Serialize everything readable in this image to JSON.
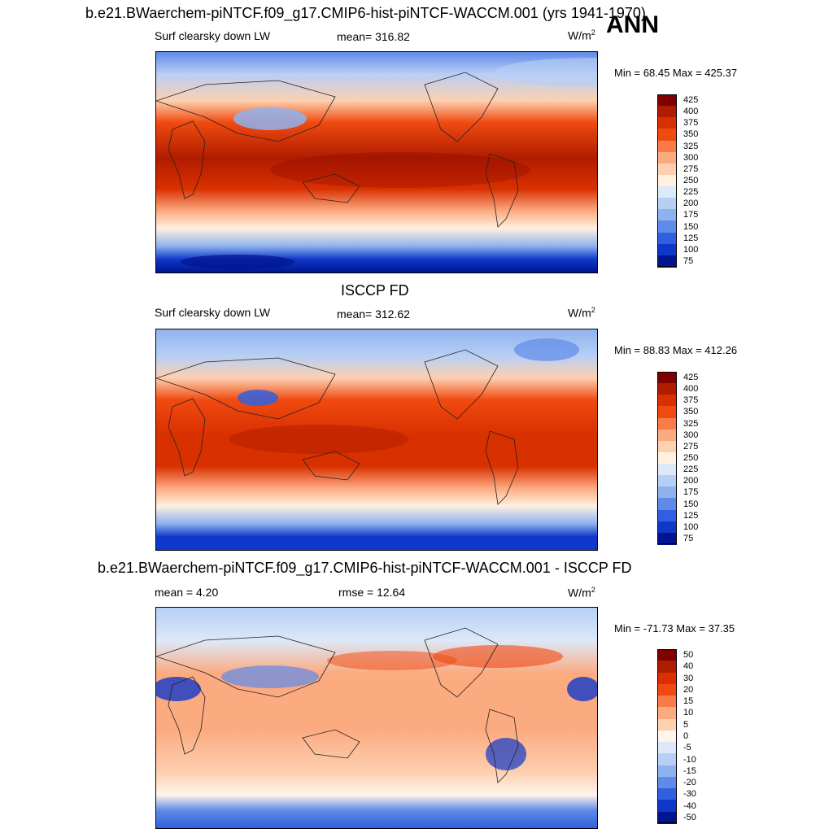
{
  "header": {
    "main_title": "b.e21.BWaerchem-piNTCF.f09_g17.CMIP6-hist-piNTCF-WACCM.001 (yrs 1941-1970)",
    "season": "ANN"
  },
  "chart_data": [
    {
      "type": "heatmap",
      "title": "b.e21.BWaerchem-piNTCF.f09_g17.CMIP6-hist-piNTCF-WACCM.001 (yrs 1941-1970)",
      "left_label": "Surf clearsky down LW",
      "center_label": "mean= 316.82",
      "units": "W/m",
      "units_sup": "2",
      "min": 68.45,
      "max": 425.37,
      "minmax_text": "Min =  68.45 Max = 425.37",
      "colorbar": [
        "425",
        "400",
        "375",
        "350",
        "325",
        "300",
        "275",
        "250",
        "225",
        "200",
        "175",
        "150",
        "125",
        "100",
        "75"
      ],
      "colors": [
        "#7f0000",
        "#b01c00",
        "#d93000",
        "#f04a10",
        "#f97c48",
        "#fcaa80",
        "#fdd0b0",
        "#fff0e0",
        "#dde8f8",
        "#b8cff5",
        "#8fb2ef",
        "#5f8ae8",
        "#3060e0",
        "#1038c8",
        "#00158f"
      ]
    },
    {
      "type": "heatmap",
      "title": "ISCCP FD",
      "left_label": "Surf clearsky down LW",
      "center_label": "mean= 312.62",
      "units": "W/m",
      "units_sup": "2",
      "min": 88.83,
      "max": 412.26,
      "minmax_text": "Min =  88.83 Max = 412.26",
      "colorbar": [
        "425",
        "400",
        "375",
        "350",
        "325",
        "300",
        "275",
        "250",
        "225",
        "200",
        "175",
        "150",
        "125",
        "100",
        "75"
      ],
      "colors": [
        "#7f0000",
        "#b01c00",
        "#d93000",
        "#f04a10",
        "#f97c48",
        "#fcaa80",
        "#fdd0b0",
        "#fff0e0",
        "#dde8f8",
        "#b8cff5",
        "#8fb2ef",
        "#5f8ae8",
        "#3060e0",
        "#1038c8",
        "#00158f"
      ]
    },
    {
      "type": "heatmap",
      "title": "b.e21.BWaerchem-piNTCF.f09_g17.CMIP6-hist-piNTCF-WACCM.001 - ISCCP FD",
      "left_label": "mean =   4.20",
      "center_label": "rmse =  12.64",
      "units": "W/m",
      "units_sup": "2",
      "min": -71.73,
      "max": 37.35,
      "minmax_text": "Min = -71.73 Max =  37.35",
      "colorbar": [
        "50",
        "40",
        "30",
        "20",
        "15",
        "10",
        "5",
        "0",
        "-5",
        "-10",
        "-15",
        "-20",
        "-30",
        "-40",
        "-50"
      ],
      "colors": [
        "#7f0000",
        "#b01c00",
        "#d93000",
        "#f04a10",
        "#f97c48",
        "#fcaa80",
        "#fdd0b0",
        "#fff4ec",
        "#dde8f8",
        "#b8cff5",
        "#8fb2ef",
        "#5f8ae8",
        "#3060e0",
        "#1038c8",
        "#00158f"
      ]
    }
  ]
}
